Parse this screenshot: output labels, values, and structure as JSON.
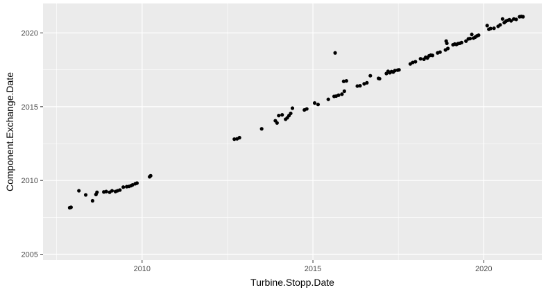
{
  "chart_data": {
    "type": "scatter",
    "xlabel": "Turbine.Stopp.Date",
    "ylabel": "Component.Exchange.Date",
    "xlim": [
      2007.1,
      2021.7
    ],
    "ylim": [
      2004.6,
      2022.0
    ],
    "x_ticks": [
      2010,
      2015,
      2020
    ],
    "x_minor": [
      2007.5,
      2012.5,
      2017.5
    ],
    "y_ticks": [
      2005,
      2010,
      2015,
      2020
    ],
    "y_minor": [
      2007.5,
      2012.5,
      2017.5
    ],
    "x_tick_labels": [
      "2010",
      "2015",
      "2020"
    ],
    "y_tick_labels": [
      "2005",
      "2010",
      "2015",
      "2020"
    ],
    "grid": true,
    "colors": {
      "panel": "#ebebeb",
      "grid": "#ffffff",
      "point": "#000000"
    },
    "points": [
      [
        2007.88,
        2008.15
      ],
      [
        2007.92,
        2008.18
      ],
      [
        2008.15,
        2009.3
      ],
      [
        2008.35,
        2009.02
      ],
      [
        2008.55,
        2008.62
      ],
      [
        2008.65,
        2009.05
      ],
      [
        2008.68,
        2009.2
      ],
      [
        2008.88,
        2009.22
      ],
      [
        2008.95,
        2009.25
      ],
      [
        2009.05,
        2009.2
      ],
      [
        2009.12,
        2009.3
      ],
      [
        2009.22,
        2009.25
      ],
      [
        2009.28,
        2009.3
      ],
      [
        2009.35,
        2009.35
      ],
      [
        2009.45,
        2009.55
      ],
      [
        2009.55,
        2009.58
      ],
      [
        2009.62,
        2009.6
      ],
      [
        2009.68,
        2009.65
      ],
      [
        2009.72,
        2009.7
      ],
      [
        2009.8,
        2009.78
      ],
      [
        2009.85,
        2009.82
      ],
      [
        2010.22,
        2010.25
      ],
      [
        2010.25,
        2010.32
      ],
      [
        2012.7,
        2012.8
      ],
      [
        2012.78,
        2012.82
      ],
      [
        2012.85,
        2012.9
      ],
      [
        2013.5,
        2013.5
      ],
      [
        2013.9,
        2014.05
      ],
      [
        2013.95,
        2013.9
      ],
      [
        2014.0,
        2014.4
      ],
      [
        2014.1,
        2014.45
      ],
      [
        2014.2,
        2014.15
      ],
      [
        2014.25,
        2014.25
      ],
      [
        2014.3,
        2014.4
      ],
      [
        2014.35,
        2014.55
      ],
      [
        2014.4,
        2014.9
      ],
      [
        2014.75,
        2014.78
      ],
      [
        2014.82,
        2014.85
      ],
      [
        2015.05,
        2015.25
      ],
      [
        2015.15,
        2015.15
      ],
      [
        2015.45,
        2015.5
      ],
      [
        2015.62,
        2015.7
      ],
      [
        2015.68,
        2015.72
      ],
      [
        2015.75,
        2015.78
      ],
      [
        2015.65,
        2018.65
      ],
      [
        2015.85,
        2015.85
      ],
      [
        2015.92,
        2016.05
      ],
      [
        2015.9,
        2016.72
      ],
      [
        2015.98,
        2016.75
      ],
      [
        2016.3,
        2016.4
      ],
      [
        2016.38,
        2016.42
      ],
      [
        2016.5,
        2016.55
      ],
      [
        2016.58,
        2016.62
      ],
      [
        2016.68,
        2017.1
      ],
      [
        2016.92,
        2016.92
      ],
      [
        2016.95,
        2016.9
      ],
      [
        2017.15,
        2017.25
      ],
      [
        2017.2,
        2017.4
      ],
      [
        2017.25,
        2017.3
      ],
      [
        2017.3,
        2017.38
      ],
      [
        2017.35,
        2017.35
      ],
      [
        2017.4,
        2017.45
      ],
      [
        2017.48,
        2017.48
      ],
      [
        2017.52,
        2017.5
      ],
      [
        2017.85,
        2017.9
      ],
      [
        2017.92,
        2018.0
      ],
      [
        2018.0,
        2018.05
      ],
      [
        2018.15,
        2018.25
      ],
      [
        2018.25,
        2018.22
      ],
      [
        2018.3,
        2018.35
      ],
      [
        2018.35,
        2018.3
      ],
      [
        2018.4,
        2018.45
      ],
      [
        2018.45,
        2018.5
      ],
      [
        2018.5,
        2018.48
      ],
      [
        2018.65,
        2018.65
      ],
      [
        2018.72,
        2018.7
      ],
      [
        2018.88,
        2018.85
      ],
      [
        2018.9,
        2019.45
      ],
      [
        2018.92,
        2019.3
      ],
      [
        2018.95,
        2018.95
      ],
      [
        2019.1,
        2019.2
      ],
      [
        2019.15,
        2019.25
      ],
      [
        2019.2,
        2019.22
      ],
      [
        2019.25,
        2019.28
      ],
      [
        2019.3,
        2019.3
      ],
      [
        2019.35,
        2019.35
      ],
      [
        2019.48,
        2019.45
      ],
      [
        2019.55,
        2019.6
      ],
      [
        2019.6,
        2019.62
      ],
      [
        2019.65,
        2019.9
      ],
      [
        2019.7,
        2019.65
      ],
      [
        2019.75,
        2019.72
      ],
      [
        2019.8,
        2019.8
      ],
      [
        2019.85,
        2019.85
      ],
      [
        2020.1,
        2020.5
      ],
      [
        2020.15,
        2020.25
      ],
      [
        2020.2,
        2020.3
      ],
      [
        2020.3,
        2020.32
      ],
      [
        2020.42,
        2020.45
      ],
      [
        2020.48,
        2020.55
      ],
      [
        2020.55,
        2020.95
      ],
      [
        2020.6,
        2020.7
      ],
      [
        2020.65,
        2020.8
      ],
      [
        2020.7,
        2020.85
      ],
      [
        2020.75,
        2020.9
      ],
      [
        2020.8,
        2020.82
      ],
      [
        2020.88,
        2020.95
      ],
      [
        2020.95,
        2020.92
      ],
      [
        2021.05,
        2021.1
      ],
      [
        2021.1,
        2021.12
      ],
      [
        2021.15,
        2021.1
      ]
    ]
  }
}
